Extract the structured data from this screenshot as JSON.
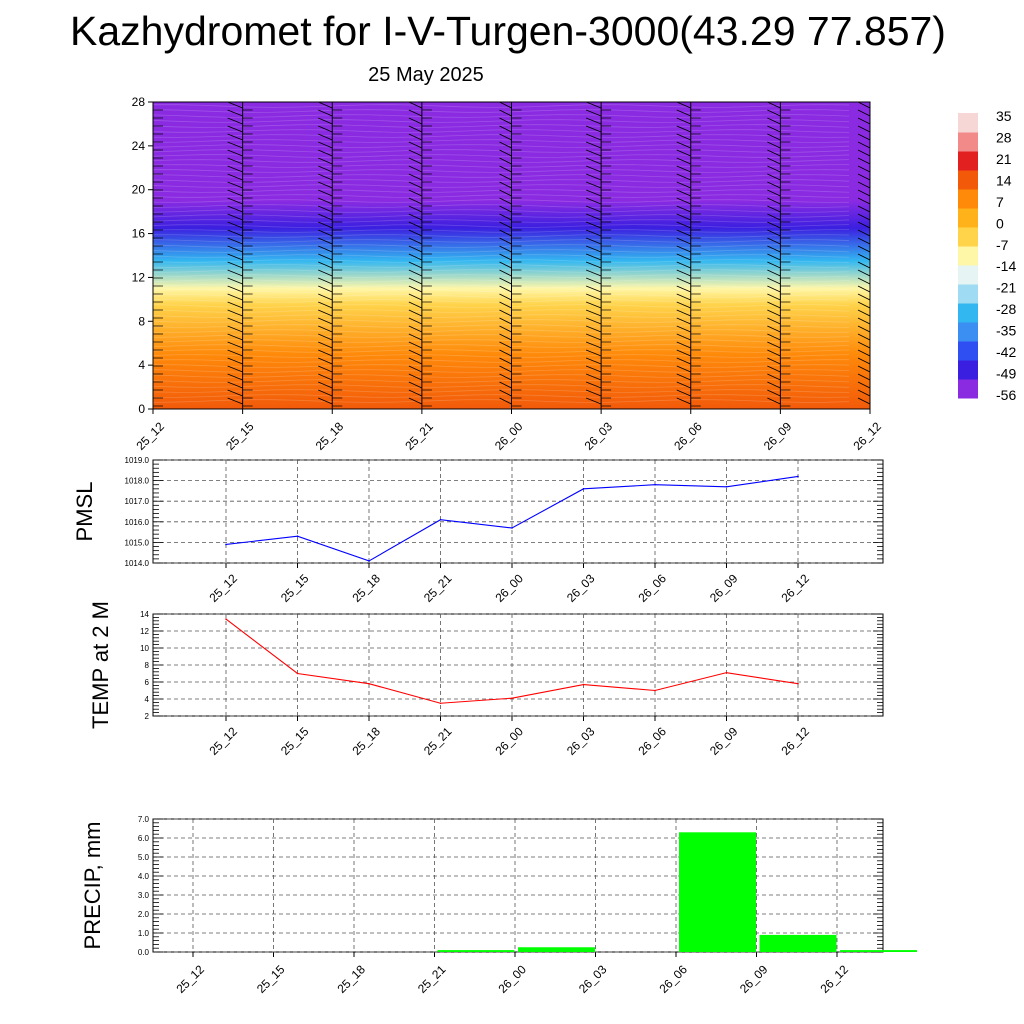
{
  "title": "Kazhydromet for I-V-Turgen-3000(43.29 77.857)",
  "date": "25 May 2025",
  "chart_data": [
    {
      "type": "heatmap",
      "x": [
        "25_12",
        "25_15",
        "25_18",
        "25_21",
        "26_00",
        "26_03",
        "26_06",
        "26_09",
        "26_12"
      ],
      "y_ticks": [
        0,
        4,
        8,
        12,
        16,
        20,
        24,
        28
      ],
      "ylim": [
        0,
        28
      ],
      "colorbar": {
        "levels": [
          35,
          28,
          21,
          14,
          7,
          0,
          -7,
          -14,
          -21,
          -28,
          -35,
          -42,
          -49,
          -56
        ],
        "range": [
          -60,
          38
        ],
        "colors": [
          "#8a2be2",
          "#3b1fe0",
          "#2f4ff2",
          "#3b8ef2",
          "#33b7f0",
          "#9fdbf2",
          "#e6f4f4",
          "#fff7a8",
          "#ffd34a",
          "#ffb21a",
          "#ff8a0a",
          "#f25a0a",
          "#e32020",
          "#f28a8a",
          "#f7d6d6"
        ]
      },
      "temperature_profile": [
        {
          "y": 0,
          "value": 12
        },
        {
          "y": 5,
          "value": 7
        },
        {
          "y": 9.5,
          "value": -6
        },
        {
          "y": 11,
          "value": -14
        },
        {
          "y": 13.5,
          "value": -30
        },
        {
          "y": 16.5,
          "value": -47
        },
        {
          "y": 19,
          "value": -56
        },
        {
          "y": 22,
          "value": -54
        },
        {
          "y": 25,
          "value": -60
        },
        {
          "y": 28,
          "value": -60
        }
      ],
      "wind_barbs": true
    },
    {
      "type": "line",
      "ylabel": "PMSL",
      "x": [
        "25_12",
        "25_15",
        "25_18",
        "25_21",
        "26_00",
        "26_03",
        "26_06",
        "26_09",
        "26_12"
      ],
      "values": [
        1014.9,
        1015.3,
        1014.1,
        1016.1,
        1015.7,
        1017.6,
        1017.8,
        1017.7,
        1018.2
      ],
      "y_ticks": [
        "1014.0",
        "1015.0",
        "1016.0",
        "1017.0",
        "1018.0",
        "1019.0"
      ],
      "ylim": [
        1014,
        1019
      ],
      "color": "#0000ff",
      "grid": true
    },
    {
      "type": "line",
      "ylabel": "TEMP at 2 M",
      "x": [
        "25_12",
        "25_15",
        "25_18",
        "25_21",
        "26_00",
        "26_03",
        "26_06",
        "26_09",
        "26_12"
      ],
      "values": [
        13.4,
        7.0,
        5.8,
        3.5,
        4.1,
        5.7,
        5.0,
        7.1,
        5.8
      ],
      "y_ticks": [
        "2",
        "4",
        "6",
        "8",
        "10",
        "12",
        "14"
      ],
      "ylim": [
        2,
        14
      ],
      "color": "#ff0000",
      "grid": true
    },
    {
      "type": "bar",
      "ylabel": "PRECIP, mm",
      "categories": [
        "25_12",
        "25_15",
        "25_18",
        "25_21",
        "26_00",
        "26_03",
        "26_06",
        "26_09",
        "26_12"
      ],
      "values": [
        0,
        0,
        0,
        0.1,
        0.25,
        0,
        6.3,
        0.9,
        0.1
      ],
      "y_ticks": [
        "0.0",
        "1.0",
        "2.0",
        "3.0",
        "4.0",
        "5.0",
        "6.0",
        "7.0"
      ],
      "ylim": [
        0,
        7
      ],
      "color": "#00ff00",
      "grid": true
    }
  ]
}
